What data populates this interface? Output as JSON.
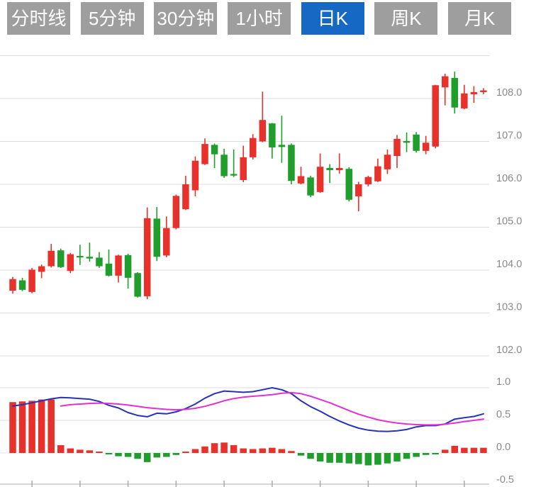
{
  "tabs": [
    {
      "label": "分时线",
      "active": false
    },
    {
      "label": "5分钟",
      "active": false
    },
    {
      "label": "30分钟",
      "active": false
    },
    {
      "label": "1小时",
      "active": false
    },
    {
      "label": "日K",
      "active": true
    },
    {
      "label": "周K",
      "active": false
    },
    {
      "label": "月K",
      "active": false
    }
  ],
  "colors": {
    "up": "#e8312b",
    "down": "#1f9e2c",
    "dif_line": "#2733b5",
    "dea_line": "#e032d2",
    "tab_bg": "#9e9e9e",
    "tab_active_bg": "#1568c4",
    "tab_text": "#ffffff",
    "grid": "#dcdcdc",
    "zero_line": "#e3e3e3",
    "bottom_axis": "#c8c8c8",
    "tick": "#aaaaaa",
    "axis_label": "#8a8a8a"
  },
  "chart_data": [
    {
      "type": "candlestick",
      "panel": "price",
      "title": "",
      "xlabel": "",
      "ylabel": "",
      "y_axis": {
        "ticks": [
          109,
          108,
          107,
          106,
          105,
          104,
          103,
          102
        ],
        "labels": [
          "",
          "108.0",
          "107.0",
          "106.0",
          "105.0",
          "104.0",
          "103.0",
          "102.0"
        ],
        "range": [
          101.5,
          109.3
        ]
      },
      "candles_ohlc": [
        [
          103.52,
          103.84,
          103.45,
          103.79
        ],
        [
          103.76,
          103.82,
          103.51,
          103.54
        ],
        [
          103.49,
          104.05,
          103.46,
          104.01
        ],
        [
          103.96,
          104.13,
          103.81,
          104.09
        ],
        [
          104.09,
          104.61,
          104.06,
          104.45
        ],
        [
          104.46,
          104.5,
          104.05,
          104.07
        ],
        [
          103.98,
          104.4,
          103.93,
          104.37
        ],
        [
          104.33,
          104.59,
          104.12,
          104.3
        ],
        [
          104.31,
          104.64,
          104.2,
          104.27
        ],
        [
          104.29,
          104.42,
          104.05,
          104.09
        ],
        [
          104.15,
          104.48,
          103.85,
          103.87
        ],
        [
          103.87,
          104.36,
          103.71,
          104.34
        ],
        [
          104.35,
          104.38,
          103.57,
          103.82
        ],
        [
          103.93,
          103.95,
          103.36,
          103.38
        ],
        [
          103.39,
          105.46,
          103.32,
          105.21
        ],
        [
          105.2,
          105.47,
          104.21,
          104.31
        ],
        [
          104.34,
          105.25,
          104.3,
          104.98
        ],
        [
          104.98,
          105.76,
          104.95,
          105.73
        ],
        [
          105.42,
          106.2,
          105.4,
          106.0
        ],
        [
          105.86,
          106.65,
          105.72,
          106.55
        ],
        [
          106.47,
          107.07,
          106.45,
          106.94
        ],
        [
          106.92,
          106.95,
          106.38,
          106.7
        ],
        [
          106.69,
          106.83,
          106.15,
          106.19
        ],
        [
          106.24,
          106.81,
          106.17,
          106.21
        ],
        [
          106.1,
          106.9,
          106.05,
          106.63
        ],
        [
          106.63,
          107.17,
          106.58,
          107.08
        ],
        [
          107.0,
          108.16,
          106.98,
          107.5
        ],
        [
          107.42,
          107.43,
          106.6,
          106.86
        ],
        [
          106.92,
          107.6,
          106.5,
          106.87
        ],
        [
          106.92,
          106.95,
          106.0,
          106.08
        ],
        [
          106.02,
          106.41,
          106.0,
          106.19
        ],
        [
          106.16,
          106.2,
          105.7,
          105.74
        ],
        [
          105.82,
          106.72,
          105.8,
          106.41
        ],
        [
          106.38,
          106.47,
          106.03,
          106.33
        ],
        [
          106.33,
          106.72,
          106.25,
          106.38
        ],
        [
          106.36,
          106.4,
          105.6,
          105.64
        ],
        [
          105.72,
          106.06,
          105.37,
          106.0
        ],
        [
          106.0,
          106.2,
          105.95,
          106.17
        ],
        [
          106.07,
          106.6,
          106.05,
          106.42
        ],
        [
          106.35,
          106.81,
          106.24,
          106.69
        ],
        [
          106.66,
          107.15,
          106.38,
          107.06
        ],
        [
          107.01,
          107.21,
          106.75,
          106.97
        ],
        [
          107.16,
          107.22,
          106.74,
          106.78
        ],
        [
          106.78,
          107.13,
          106.7,
          106.97
        ],
        [
          106.88,
          108.32,
          106.84,
          108.31
        ],
        [
          108.26,
          108.58,
          107.84,
          108.52
        ],
        [
          108.48,
          108.63,
          107.65,
          107.79
        ],
        [
          107.77,
          108.32,
          107.75,
          108.12
        ],
        [
          108.1,
          108.29,
          107.9,
          108.15
        ],
        [
          108.15,
          108.24,
          108.1,
          108.19
        ]
      ]
    },
    {
      "type": "bar",
      "panel": "macd-indicator",
      "y_axis": {
        "ticks": [
          1.0,
          0.5,
          0.0,
          -0.5
        ],
        "labels": [
          "1.0",
          "0.5",
          "0.0",
          "-0.5"
        ],
        "range": [
          -0.55,
          1.05
        ]
      },
      "histogram": [
        0.78,
        0.79,
        0.8,
        0.82,
        0.82,
        0.12,
        0.07,
        0.05,
        0.04,
        0.015,
        -0.02,
        -0.05,
        -0.06,
        -0.09,
        -0.14,
        -0.07,
        -0.06,
        -0.03,
        0.02,
        0.06,
        0.1,
        0.15,
        0.16,
        0.12,
        0.07,
        0.06,
        0.07,
        0.08,
        0.06,
        0.03,
        -0.04,
        -0.09,
        -0.13,
        -0.15,
        -0.15,
        -0.16,
        -0.17,
        -0.19,
        -0.18,
        -0.16,
        -0.13,
        -0.09,
        -0.06,
        -0.03,
        -0.02,
        0.05,
        0.11,
        0.08,
        0.08,
        0.08
      ],
      "series": [
        {
          "name": "DIF",
          "color_key": "dif_line",
          "values": [
            0.72,
            0.74,
            0.77,
            0.8,
            0.83,
            0.85,
            0.845,
            0.835,
            0.825,
            0.79,
            0.73,
            0.69,
            0.62,
            0.575,
            0.555,
            0.61,
            0.6,
            0.63,
            0.68,
            0.75,
            0.84,
            0.91,
            0.95,
            0.94,
            0.93,
            0.94,
            0.97,
            1.0,
            0.97,
            0.91,
            0.8,
            0.71,
            0.64,
            0.56,
            0.49,
            0.43,
            0.38,
            0.35,
            0.335,
            0.33,
            0.34,
            0.36,
            0.4,
            0.42,
            0.42,
            0.445,
            0.52,
            0.54,
            0.56,
            0.6
          ]
        },
        {
          "name": "DEA",
          "color_key": "dea_line",
          "values": [
            null,
            null,
            null,
            null,
            null,
            0.72,
            0.74,
            0.75,
            0.76,
            0.765,
            0.76,
            0.75,
            0.735,
            0.715,
            0.695,
            0.68,
            0.668,
            0.662,
            0.668,
            0.685,
            0.715,
            0.755,
            0.8,
            0.835,
            0.855,
            0.87,
            0.88,
            0.895,
            0.915,
            0.925,
            0.91,
            0.87,
            0.82,
            0.77,
            0.71,
            0.65,
            0.595,
            0.55,
            0.51,
            0.48,
            0.46,
            0.445,
            0.435,
            0.43,
            0.43,
            0.44,
            0.46,
            0.48,
            0.5,
            0.52
          ]
        }
      ]
    }
  ]
}
